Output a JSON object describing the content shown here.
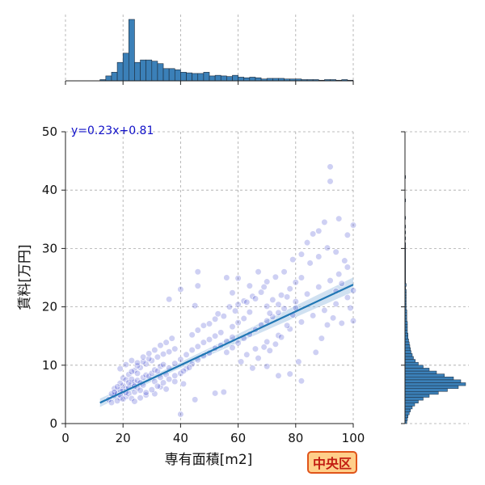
{
  "chart_data": {
    "type": "scatter",
    "title": "",
    "xlabel": "専有面積[m2]",
    "ylabel": "賃料[万円]",
    "xlim": [
      0,
      100
    ],
    "ylim": [
      0,
      50
    ],
    "xticks": [
      "0",
      "20",
      "40",
      "60",
      "80",
      "100"
    ],
    "yticks": [
      "0",
      "10",
      "20",
      "30",
      "40",
      "50"
    ],
    "grid": true,
    "regression": {
      "equation": "y=0.23x+0.81",
      "slope": 0.23,
      "intercept": 0.81,
      "x_range": [
        12,
        100
      ]
    },
    "points": [
      [
        15,
        4.1
      ],
      [
        16,
        3.6
      ],
      [
        17,
        4.8
      ],
      [
        18,
        5.2
      ],
      [
        19,
        4.4
      ],
      [
        20,
        5.6
      ],
      [
        21,
        5.9
      ],
      [
        22,
        6.2
      ],
      [
        23,
        6.8
      ],
      [
        24,
        7.1
      ],
      [
        25,
        7.4
      ],
      [
        26,
        7.0
      ],
      [
        27,
        7.9
      ],
      [
        28,
        8.3
      ],
      [
        29,
        8.1
      ],
      [
        30,
        8.6
      ],
      [
        31,
        9.2
      ],
      [
        32,
        9.0
      ],
      [
        33,
        9.8
      ],
      [
        34,
        10.1
      ],
      [
        18,
        3.9
      ],
      [
        19,
        5.8
      ],
      [
        20,
        6.5
      ],
      [
        21,
        4.6
      ],
      [
        22,
        5.1
      ],
      [
        23,
        4.3
      ],
      [
        24,
        5.4
      ],
      [
        25,
        6.1
      ],
      [
        26,
        5.7
      ],
      [
        27,
        6.6
      ],
      [
        20,
        7.8
      ],
      [
        22,
        8.4
      ],
      [
        24,
        9.1
      ],
      [
        26,
        9.6
      ],
      [
        28,
        10.2
      ],
      [
        30,
        10.8
      ],
      [
        32,
        11.4
      ],
      [
        34,
        11.9
      ],
      [
        36,
        12.3
      ],
      [
        38,
        12.8
      ],
      [
        17,
        6.0
      ],
      [
        19,
        6.9
      ],
      [
        21,
        7.5
      ],
      [
        23,
        8.9
      ],
      [
        25,
        9.9
      ],
      [
        27,
        10.6
      ],
      [
        29,
        11.1
      ],
      [
        31,
        7.2
      ],
      [
        33,
        7.9
      ],
      [
        35,
        8.4
      ],
      [
        36,
        9.5
      ],
      [
        38,
        10.3
      ],
      [
        40,
        11.0
      ],
      [
        42,
        11.8
      ],
      [
        44,
        12.6
      ],
      [
        46,
        13.2
      ],
      [
        48,
        13.9
      ],
      [
        50,
        14.4
      ],
      [
        52,
        15.0
      ],
      [
        54,
        15.6
      ],
      [
        40,
        8.6
      ],
      [
        42,
        9.4
      ],
      [
        44,
        10.2
      ],
      [
        46,
        10.9
      ],
      [
        48,
        11.6
      ],
      [
        50,
        12.1
      ],
      [
        52,
        12.9
      ],
      [
        54,
        13.4
      ],
      [
        56,
        14.1
      ],
      [
        58,
        14.8
      ],
      [
        44,
        15.2
      ],
      [
        46,
        16.0
      ],
      [
        48,
        16.8
      ],
      [
        50,
        17.1
      ],
      [
        52,
        17.9
      ],
      [
        55,
        18.4
      ],
      [
        58,
        16.6
      ],
      [
        60,
        17.3
      ],
      [
        62,
        18.0
      ],
      [
        64,
        19.1
      ],
      [
        56,
        12.2
      ],
      [
        58,
        13.0
      ],
      [
        60,
        13.8
      ],
      [
        62,
        14.6
      ],
      [
        64,
        15.3
      ],
      [
        66,
        16.1
      ],
      [
        68,
        16.9
      ],
      [
        70,
        17.6
      ],
      [
        72,
        18.3
      ],
      [
        74,
        19.0
      ],
      [
        60,
        20.4
      ],
      [
        62,
        21.0
      ],
      [
        65,
        21.8
      ],
      [
        68,
        22.5
      ],
      [
        70,
        20.1
      ],
      [
        72,
        21.2
      ],
      [
        75,
        22.0
      ],
      [
        78,
        23.1
      ],
      [
        80,
        24.2
      ],
      [
        82,
        25.0
      ],
      [
        66,
        12.8
      ],
      [
        70,
        14.0
      ],
      [
        74,
        15.1
      ],
      [
        78,
        16.2
      ],
      [
        82,
        17.4
      ],
      [
        86,
        18.5
      ],
      [
        90,
        19.4
      ],
      [
        94,
        20.5
      ],
      [
        98,
        21.6
      ],
      [
        100,
        22.8
      ],
      [
        76,
        19.7
      ],
      [
        80,
        20.9
      ],
      [
        84,
        22.2
      ],
      [
        88,
        23.4
      ],
      [
        92,
        24.5
      ],
      [
        95,
        25.6
      ],
      [
        98,
        26.8
      ],
      [
        85,
        27.5
      ],
      [
        88,
        28.6
      ],
      [
        91,
        30.1
      ],
      [
        70,
        24.3
      ],
      [
        73,
        25.1
      ],
      [
        76,
        26.0
      ],
      [
        79,
        28.1
      ],
      [
        82,
        29.0
      ],
      [
        84,
        31.0
      ],
      [
        86,
        32.5
      ],
      [
        88,
        33.0
      ],
      [
        90,
        34.5
      ],
      [
        92,
        41.5
      ],
      [
        92,
        44.0
      ],
      [
        95,
        35.1
      ],
      [
        98,
        32.3
      ],
      [
        100,
        34.0
      ],
      [
        97,
        27.9
      ],
      [
        94,
        29.4
      ],
      [
        99,
        19.8
      ],
      [
        96,
        17.2
      ],
      [
        93,
        18.1
      ],
      [
        100,
        17.6
      ],
      [
        46,
        26.0
      ],
      [
        46,
        23.6
      ],
      [
        40,
        23.0
      ],
      [
        36,
        21.3
      ],
      [
        45,
        20.2
      ],
      [
        56,
        25.0
      ],
      [
        60,
        24.9
      ],
      [
        58,
        22.4
      ],
      [
        64,
        23.6
      ],
      [
        67,
        26.0
      ],
      [
        40,
        1.6
      ],
      [
        45,
        4.1
      ],
      [
        52,
        5.2
      ],
      [
        55,
        5.4
      ],
      [
        41,
        6.8
      ],
      [
        35,
        5.9
      ],
      [
        31,
        5.1
      ],
      [
        28,
        4.9
      ],
      [
        33,
        6.3
      ],
      [
        38,
        7.2
      ],
      [
        19,
        9.4
      ],
      [
        21,
        10.1
      ],
      [
        23,
        10.8
      ],
      [
        25,
        10.4
      ],
      [
        27,
        11.4
      ],
      [
        29,
        12.0
      ],
      [
        31,
        12.6
      ],
      [
        33,
        13.4
      ],
      [
        35,
        13.9
      ],
      [
        37,
        14.6
      ],
      [
        24,
        3.8
      ],
      [
        26,
        4.4
      ],
      [
        28,
        5.3
      ],
      [
        30,
        5.8
      ],
      [
        32,
        6.4
      ],
      [
        34,
        7.0
      ],
      [
        36,
        7.6
      ],
      [
        38,
        8.2
      ],
      [
        41,
        9.0
      ],
      [
        43,
        9.6
      ],
      [
        16,
        5.1
      ],
      [
        17,
        5.4
      ],
      [
        18,
        6.3
      ],
      [
        19,
        4.9
      ],
      [
        20,
        4.2
      ],
      [
        21,
        5.3
      ],
      [
        22,
        7.0
      ],
      [
        23,
        7.6
      ],
      [
        24,
        6.4
      ],
      [
        25,
        8.6
      ],
      [
        61,
        10.6
      ],
      [
        63,
        11.8
      ],
      [
        65,
        9.5
      ],
      [
        67,
        11.2
      ],
      [
        69,
        13.1
      ],
      [
        71,
        12.5
      ],
      [
        73,
        13.6
      ],
      [
        75,
        14.8
      ],
      [
        77,
        16.8
      ],
      [
        79,
        18.6
      ],
      [
        53,
        18.8
      ],
      [
        57,
        20.0
      ],
      [
        59,
        19.3
      ],
      [
        63,
        20.8
      ],
      [
        66,
        21.4
      ],
      [
        69,
        23.4
      ],
      [
        71,
        18.9
      ],
      [
        74,
        20.4
      ],
      [
        77,
        21.7
      ],
      [
        80,
        19.8
      ],
      [
        82,
        7.3
      ],
      [
        78,
        8.5
      ],
      [
        74,
        8.2
      ],
      [
        70,
        9.8
      ],
      [
        81,
        10.6
      ],
      [
        87,
        12.2
      ],
      [
        89,
        14.6
      ],
      [
        91,
        16.9
      ],
      [
        94,
        22.7
      ],
      [
        96,
        24.0
      ]
    ],
    "hist_x": {
      "bin_start": 12,
      "bin_width": 2,
      "counts": [
        2,
        8,
        14,
        30,
        45,
        100,
        30,
        34,
        34,
        32,
        28,
        20,
        20,
        18,
        14,
        13,
        12,
        12,
        14,
        8,
        9,
        8,
        7,
        9,
        6,
        5,
        6,
        5,
        3,
        4,
        4,
        4,
        3,
        3,
        3,
        2,
        2,
        2,
        1,
        2,
        2,
        1,
        2,
        1
      ]
    },
    "hist_y": {
      "bin_start": 0,
      "bin_width": 0.5,
      "counts": [
        3,
        4,
        5,
        7,
        9,
        12,
        16,
        22,
        30,
        40,
        55,
        70,
        88,
        100,
        92,
        80,
        65,
        52,
        40,
        30,
        22,
        17,
        14,
        12,
        10,
        9,
        8,
        7,
        6,
        5,
        5,
        4,
        4,
        4,
        4,
        3,
        3,
        3,
        3,
        2,
        2,
        2,
        2,
        2,
        2,
        2,
        1,
        2,
        1,
        1,
        1,
        1,
        1,
        1,
        1,
        1,
        1,
        1,
        1,
        1,
        1,
        1,
        0,
        1,
        0,
        1,
        0,
        1,
        0,
        0,
        1,
        0,
        0,
        0,
        0,
        0,
        1,
        0,
        0,
        0,
        0,
        0,
        0,
        0,
        1,
        0,
        0,
        0,
        0
      ]
    }
  },
  "badge": {
    "label": "中央区"
  },
  "colors": {
    "point_fill": "#2028c8",
    "hist_bar": "#3b80b8",
    "hist_edge": "#1c2a3a",
    "regression_line": "#1f77b4",
    "ci_band": "#a9c8e6",
    "equation_text": "#1010c8"
  }
}
